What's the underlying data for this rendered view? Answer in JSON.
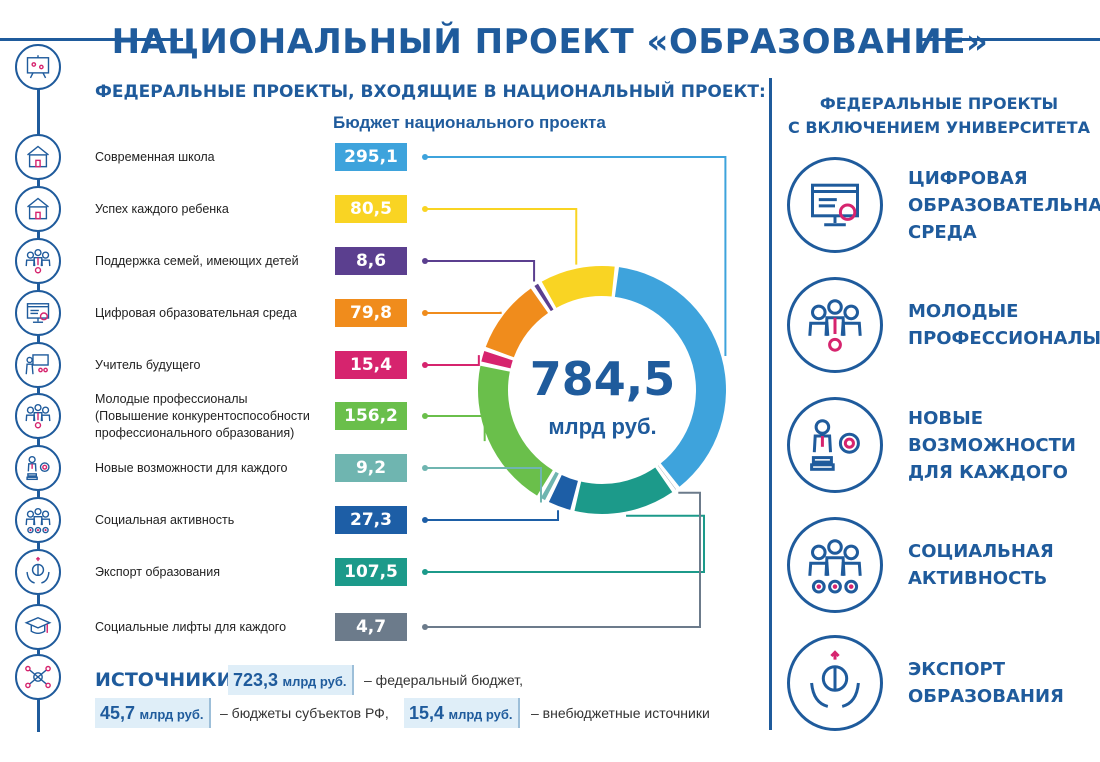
{
  "title": "НАЦИОНАЛЬНЫЙ ПРОЕКТ «ОБРАЗОВАНИЕ»",
  "left_heading": "ФЕДЕРАЛЬНЫЕ ПРОЕКТЫ, ВХОДЯЩИЕ В НАЦИОНАЛЬНЫЙ ПРОЕКТ:",
  "budget_heading": "Бюджет национального проекта",
  "total": {
    "value": "784,5",
    "unit": "млрд руб."
  },
  "projects": [
    {
      "label": "Современная школа",
      "value": "295,1",
      "color": "#3ea3dc"
    },
    {
      "label": "Успех каждого ребенка",
      "value": "80,5",
      "color": "#f9d423"
    },
    {
      "label": "Поддержка семей, имеющих детей",
      "value": "8,6",
      "color": "#5b3f8f"
    },
    {
      "label": "Цифровая образовательная среда",
      "value": "79,8",
      "color": "#f08c1c"
    },
    {
      "label": "Учитель будущего",
      "value": "15,4",
      "color": "#d6246e"
    },
    {
      "label": "Молодые профессионалы\n(Повышение конкурентоспособности\nпрофессионального образования)",
      "value": "156,2",
      "color": "#6abf4b"
    },
    {
      "label": "Новые возможности для каждого",
      "value": "9,2",
      "color": "#6fb5b0"
    },
    {
      "label": "Социальная активность",
      "value": "27,3",
      "color": "#1d5ea6"
    },
    {
      "label": "Экспорт образования",
      "value": "107,5",
      "color": "#1c9a8a"
    },
    {
      "label": "Социальные лифты для каждого",
      "value": "4,7",
      "color": "#6c7b8b"
    }
  ],
  "right_heading": "ФЕДЕРАЛЬНЫЕ ПРОЕКТЫ\nС ВКЛЮЧЕНИЕМ УНИВЕРСИТЕТА",
  "university_projects": [
    {
      "label": "ЦИФРОВАЯ\nОБРАЗОВАТЕЛЬНАЯ\nСРЕДА",
      "icon": "computer-icon"
    },
    {
      "label": "МОЛОДЫЕ\nПРОФЕССИОНАЛЫ",
      "icon": "people-award-icon"
    },
    {
      "label": "НОВЫЕ\nВОЗМОЖНОСТИ\nДЛЯ КАЖДОГО",
      "icon": "person-medal-icon"
    },
    {
      "label": "СОЦИАЛЬНАЯ\nАКТИВНОСТЬ",
      "icon": "group-stars-icon"
    },
    {
      "label": "ЭКСПОРТ\nОБРАЗОВАНИЯ",
      "icon": "brain-hands-icon"
    }
  ],
  "sources": {
    "label": "ИСТОЧНИКИ:",
    "federal": {
      "amount": "723,3",
      "unit": "млрд руб.",
      "text": "– федеральный бюджет,"
    },
    "regional": {
      "amount": "45,7",
      "unit": "млрд руб.",
      "text": "– бюджеты субъектов РФ,"
    },
    "extra": {
      "amount": "15,4",
      "unit": "млрд руб.",
      "text": "– внебюджетные источники"
    }
  },
  "chart_data": {
    "type": "pie",
    "categories": [
      "Современная школа",
      "Успех каждого ребенка",
      "Поддержка семей, имеющих детей",
      "Цифровая образовательная среда",
      "Учитель будущего",
      "Молодые профессионалы",
      "Новые возможности для каждого",
      "Социальная активность",
      "Экспорт образования",
      "Социальные лифты для каждого"
    ],
    "values": [
      295.1,
      80.5,
      8.6,
      79.8,
      15.4,
      156.2,
      9.2,
      27.3,
      107.5,
      4.7
    ],
    "total": 784.5
  },
  "theme": {
    "primary": "#1f5b9c"
  }
}
